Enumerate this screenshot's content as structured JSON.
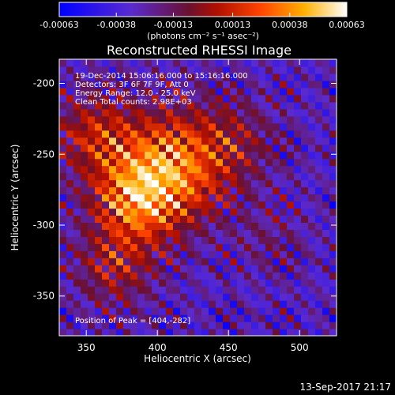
{
  "chart_data": {
    "type": "heatmap",
    "title": "Reconstructed RHESSI Image",
    "xlabel": "Heliocentric X (arcsec)",
    "ylabel": "Heliocentric Y (arcsec)",
    "xlim": [
      331,
      526
    ],
    "ylim": [
      -378,
      -183
    ],
    "x_ticks": [
      350,
      400,
      450,
      500
    ],
    "y_ticks": [
      -200,
      -250,
      -300,
      -350
    ],
    "colorbar": {
      "range": [
        -0.00063,
        0.00063
      ],
      "tick_values": [
        -0.00063,
        -0.00038,
        -0.00013,
        0.00013,
        0.00038,
        0.00063
      ],
      "tick_labels": [
        "-0.00063",
        "-0.00038",
        "-0.00013",
        "0.00013",
        "0.00038",
        "0.00063"
      ],
      "units_label": "(photons cm⁻² s⁻¹ asec⁻²)",
      "colormap": "blue-purple-red-orange-yellow-white"
    },
    "annotations": [
      "19-Dec-2014 15:06:16.000 to 15:16:16.000",
      "Detectors: 3F 6F 7F 9F, Att 0",
      "Energy Range: 12.0 - 25.0 keV",
      "Clean     Total counts: 2.98E+03"
    ],
    "peak_label": "Position of Peak = [404,-282]",
    "peak_position": [
      404,
      -282
    ],
    "sources": [
      {
        "x": 410,
        "y": -258,
        "amplitude": 0.00058,
        "sigma": 28
      },
      {
        "x": 385,
        "y": -282,
        "amplitude": 0.0005,
        "sigma": 22
      },
      {
        "x": 355,
        "y": -235,
        "amplitude": 0.00035,
        "sigma": 20
      },
      {
        "x": 370,
        "y": -330,
        "amplitude": 0.0003,
        "sigma": 20
      },
      {
        "x": 455,
        "y": -240,
        "amplitude": 0.0002,
        "sigma": 22
      },
      {
        "x": 480,
        "y": -310,
        "amplitude": 0.00012,
        "sigma": 18
      }
    ],
    "background": -0.0003
  },
  "footer": {
    "timestamp": "13-Sep-2017 21:17"
  }
}
